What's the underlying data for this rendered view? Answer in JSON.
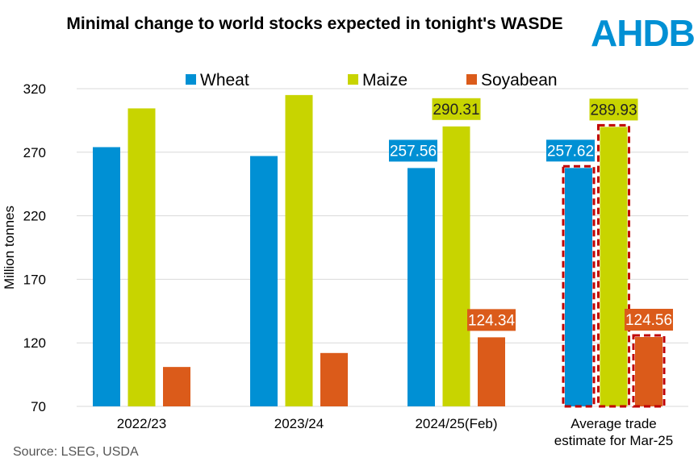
{
  "chart_data": {
    "type": "bar",
    "title": "Minimal change to world stocks expected in tonight's WASDE",
    "ylabel": "Million tonnes",
    "xlabel": "",
    "ylim": [
      70,
      320
    ],
    "yticks": [
      70,
      120,
      170,
      220,
      270,
      320
    ],
    "grid": true,
    "legend": "top",
    "categories": [
      "2022/23",
      "2023/24",
      "2024/25(Feb)",
      "Average trade estimate for Mar-25"
    ],
    "series": [
      {
        "name": "Wheat",
        "color": "#0090d4",
        "values": [
          274,
          267,
          257.56,
          257.62
        ],
        "labels": [
          null,
          null,
          "257.56",
          "257.62"
        ]
      },
      {
        "name": "Maize",
        "color": "#c8d400",
        "values": [
          304.5,
          315,
          290.31,
          289.93
        ],
        "labels": [
          null,
          null,
          "290.31",
          "289.93"
        ]
      },
      {
        "name": "Soyabean",
        "color": "#db5b1a",
        "values": [
          101,
          112,
          124.34,
          124.56
        ],
        "labels": [
          null,
          null,
          "124.34",
          "124.56"
        ]
      }
    ],
    "highlighted_category": "Average trade estimate for Mar-25",
    "highlight_color": "#c00000"
  },
  "logo": "AHDB",
  "source": "Source: LSEG, USDA"
}
